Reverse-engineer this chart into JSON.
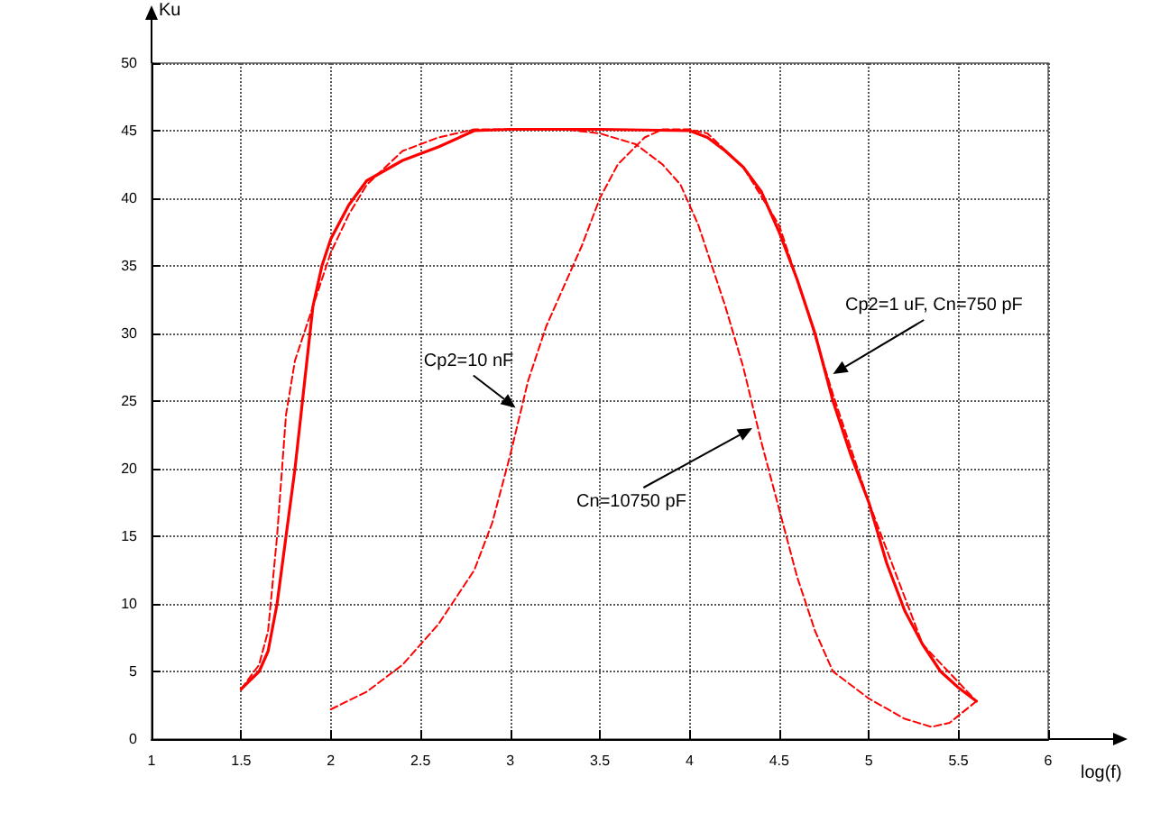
{
  "chart_data": {
    "type": "line",
    "xlabel": "log(f)",
    "ylabel": "Ku",
    "xlim": [
      1,
      6
    ],
    "xticks": [
      1,
      1.5,
      2,
      2.5,
      3,
      3.5,
      4,
      4.5,
      5,
      5.5,
      6
    ],
    "ylim": [
      0,
      50
    ],
    "yticks": [
      0,
      5,
      10,
      15,
      20,
      25,
      30,
      35,
      40,
      45,
      50
    ],
    "grid": true,
    "marker": "none",
    "series": [
      {
        "color": "#ff0000",
        "line_style": "solid",
        "x": [
          1.5,
          1.6,
          1.65,
          1.7,
          1.75,
          1.8,
          1.85,
          1.9,
          1.95,
          2.0,
          2.1,
          2.2,
          2.4,
          2.6,
          2.8,
          3,
          3.5,
          4.0,
          4.1,
          4.2,
          4.3,
          4.4,
          4.5,
          4.6,
          4.7,
          4.8,
          4.9,
          5.0,
          5.1,
          5.2,
          5.3,
          5.4,
          5.5,
          5.6
        ],
        "values": [
          3.7,
          5,
          6.5,
          10,
          15,
          20,
          26,
          32,
          35,
          37,
          39.5,
          41.3,
          42.8,
          43.8,
          45,
          45.1,
          45.1,
          45,
          44.5,
          43.5,
          42.3,
          40.5,
          37.5,
          34,
          30,
          25,
          21,
          17.5,
          13,
          9.5,
          7,
          5,
          3.8,
          2.8
        ]
      },
      {
        "color": "#ff0000",
        "line_style": "dashed",
        "x": [
          1.5,
          1.6,
          1.65,
          1.7,
          1.75,
          1.8,
          1.9,
          2.0,
          2.1,
          2.2,
          2.4,
          2.6,
          2.8,
          3.3,
          3.5,
          3.7,
          3.85,
          3.95,
          4.05,
          4.2,
          4.3,
          4.4,
          4.5,
          4.6,
          4.7,
          4.8,
          5.0,
          5.2,
          5.35,
          5.45,
          5.6
        ],
        "values": [
          3.7,
          5.5,
          8,
          15,
          24,
          28,
          32,
          36,
          38.8,
          41,
          43.5,
          44.5,
          45.1,
          45.1,
          44.8,
          44,
          42.5,
          41,
          38,
          32,
          27.5,
          22,
          17,
          12,
          8,
          5,
          3,
          1.5,
          0.9,
          1.2,
          2.8
        ]
      },
      {
        "color": "#ff0000",
        "line_style": "dashed",
        "x": [
          2,
          2.2,
          2.4,
          2.6,
          2.8,
          2.9,
          3.0,
          3.1,
          3.2,
          3.4,
          3.5,
          3.6,
          3.75,
          3.85,
          4.0,
          4.1,
          4.3,
          4.5,
          4.65,
          4.8,
          5.0,
          5.3,
          5.6
        ],
        "values": [
          2.2,
          3.5,
          5.5,
          8.5,
          12.5,
          16,
          21,
          26.5,
          30.5,
          36.5,
          40,
          42.5,
          44.5,
          45.1,
          45.1,
          44.8,
          42.3,
          38,
          32,
          25.5,
          17.5,
          7,
          2.8
        ]
      }
    ],
    "annotations": [
      {
        "text": "Cp2=10 nF",
        "x": 3.03,
        "y": 24.5
      },
      {
        "text": "Cn=10750 pF",
        "x": 4.35,
        "y": 23
      },
      {
        "text": "Cp2=1 uF, Cn=750 pF",
        "x": 4.8,
        "y": 27
      }
    ]
  }
}
